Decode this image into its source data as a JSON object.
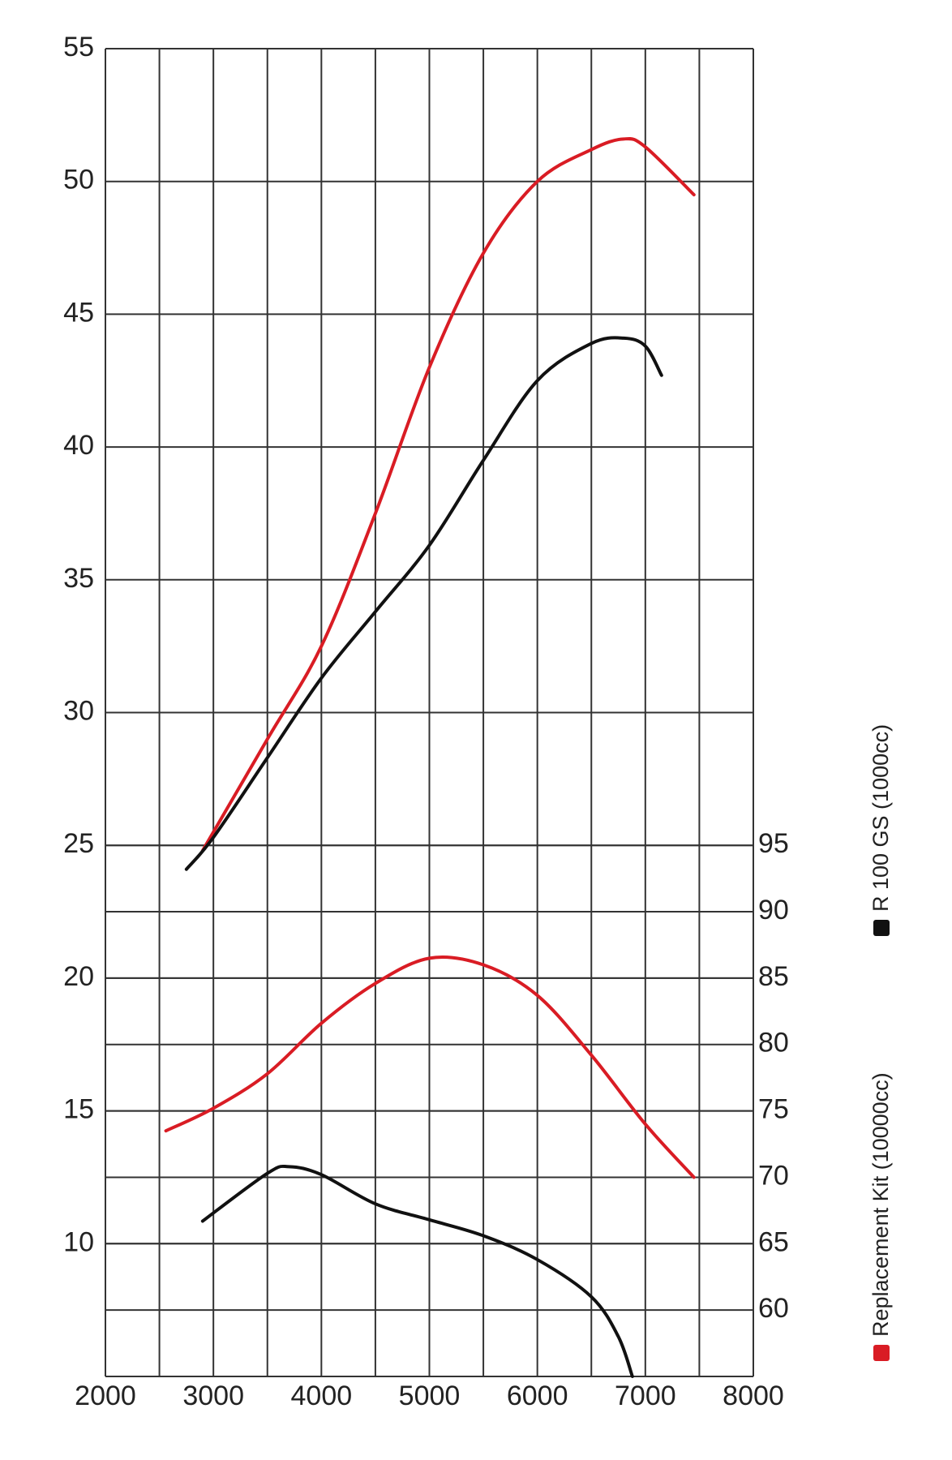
{
  "chart_data": {
    "type": "line",
    "xlim": [
      2000,
      8000
    ],
    "xticks": [
      2000,
      3000,
      4000,
      5000,
      6000,
      7000,
      8000
    ],
    "x_minor_ticks": [
      2500,
      3500,
      4500,
      5500,
      6500,
      7500
    ],
    "ylim": [
      5,
      55
    ],
    "yticks": [
      10,
      15,
      20,
      25,
      30,
      35,
      40,
      45,
      50,
      55
    ],
    "y2lim": [
      55,
      155
    ],
    "y2ticks": [
      60,
      65,
      70,
      75,
      80,
      85,
      90,
      95
    ],
    "grid": true,
    "legend": [
      {
        "name": "Replacement Kit (10000cc)",
        "color": "#d91c24"
      },
      {
        "name": "R 100 GS (1000cc)",
        "color": "#111111"
      }
    ],
    "series": [
      {
        "color": "#d91c24",
        "x": [
          2900,
          3500,
          4000,
          4500,
          5000,
          5500,
          6000,
          6500,
          6800,
          7000,
          7450
        ],
        "values": [
          24.8,
          29,
          32.5,
          37.5,
          43,
          47.3,
          50,
          51.2,
          51.6,
          51.3,
          49.5
        ]
      },
      {
        "color": "#111111",
        "x": [
          2750,
          3000,
          3500,
          4000,
          4500,
          5000,
          5500,
          6000,
          6500,
          6800,
          7000,
          7150
        ],
        "values": [
          24.1,
          25.3,
          28.3,
          31.3,
          33.8,
          36.3,
          39.5,
          42.5,
          43.9,
          44.1,
          43.8,
          42.7
        ]
      },
      {
        "color": "#d91c24",
        "axis": "y2",
        "x": [
          2560,
          3000,
          3500,
          4000,
          4500,
          5000,
          5500,
          6000,
          6500,
          7000,
          7450
        ],
        "values": [
          73.5,
          75.2,
          77.8,
          81.6,
          84.6,
          86.5,
          86,
          83.7,
          79.2,
          74,
          70
        ]
      },
      {
        "color": "#111111",
        "axis": "y2",
        "x": [
          2900,
          3500,
          3700,
          4000,
          4500,
          5000,
          5500,
          6000,
          6500,
          6750,
          6880
        ],
        "values": [
          66.7,
          70.3,
          70.8,
          70.2,
          68,
          66.8,
          65.6,
          63.8,
          61,
          58,
          55
        ]
      }
    ]
  }
}
